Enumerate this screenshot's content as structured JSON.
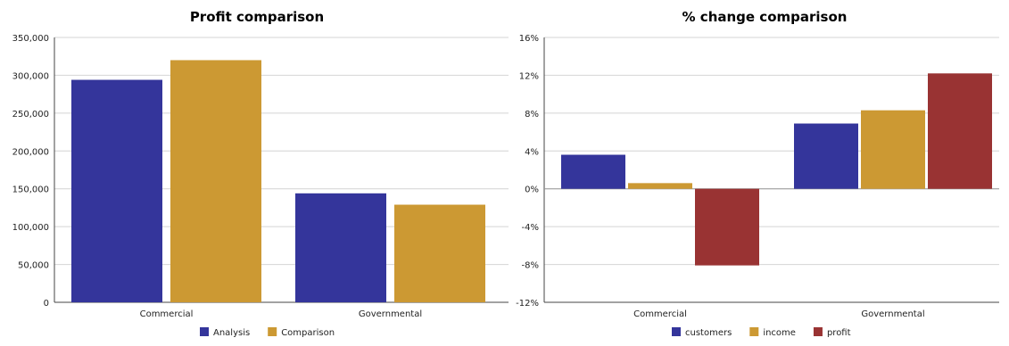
{
  "chart_data": [
    {
      "type": "bar",
      "title": "Profit comparison",
      "categories": [
        "Commercial",
        "Governmental"
      ],
      "series": [
        {
          "name": "Analysis",
          "color": "#34359b",
          "values": [
            294000,
            144000
          ]
        },
        {
          "name": "Comparison",
          "color": "#cc9933",
          "values": [
            320000,
            129000
          ]
        }
      ],
      "ylim": [
        0,
        350000
      ],
      "yticks": [
        0,
        50000,
        100000,
        150000,
        200000,
        250000,
        300000,
        350000
      ],
      "ytick_labels": [
        "0",
        "50,000",
        "100,000",
        "150,000",
        "200,000",
        "250,000",
        "300,000",
        "350,000"
      ],
      "grid": true,
      "legend": "bottom-center"
    },
    {
      "type": "bar",
      "title": "% change comparison",
      "categories": [
        "Commercial",
        "Governmental"
      ],
      "series": [
        {
          "name": "customers",
          "color": "#34359b",
          "values": [
            3.6,
            6.9
          ]
        },
        {
          "name": "income",
          "color": "#cc9933",
          "values": [
            0.6,
            8.3
          ]
        },
        {
          "name": "profit",
          "color": "#993333",
          "values": [
            -8.1,
            12.2
          ]
        }
      ],
      "ylim": [
        -12,
        16
      ],
      "yticks": [
        -12,
        -8,
        -4,
        0,
        4,
        8,
        12,
        16
      ],
      "ytick_labels": [
        "-12%",
        "-8%",
        "-4%",
        "0%",
        "4%",
        "8%",
        "12%",
        "16%"
      ],
      "grid": true,
      "legend": "bottom-center"
    }
  ]
}
